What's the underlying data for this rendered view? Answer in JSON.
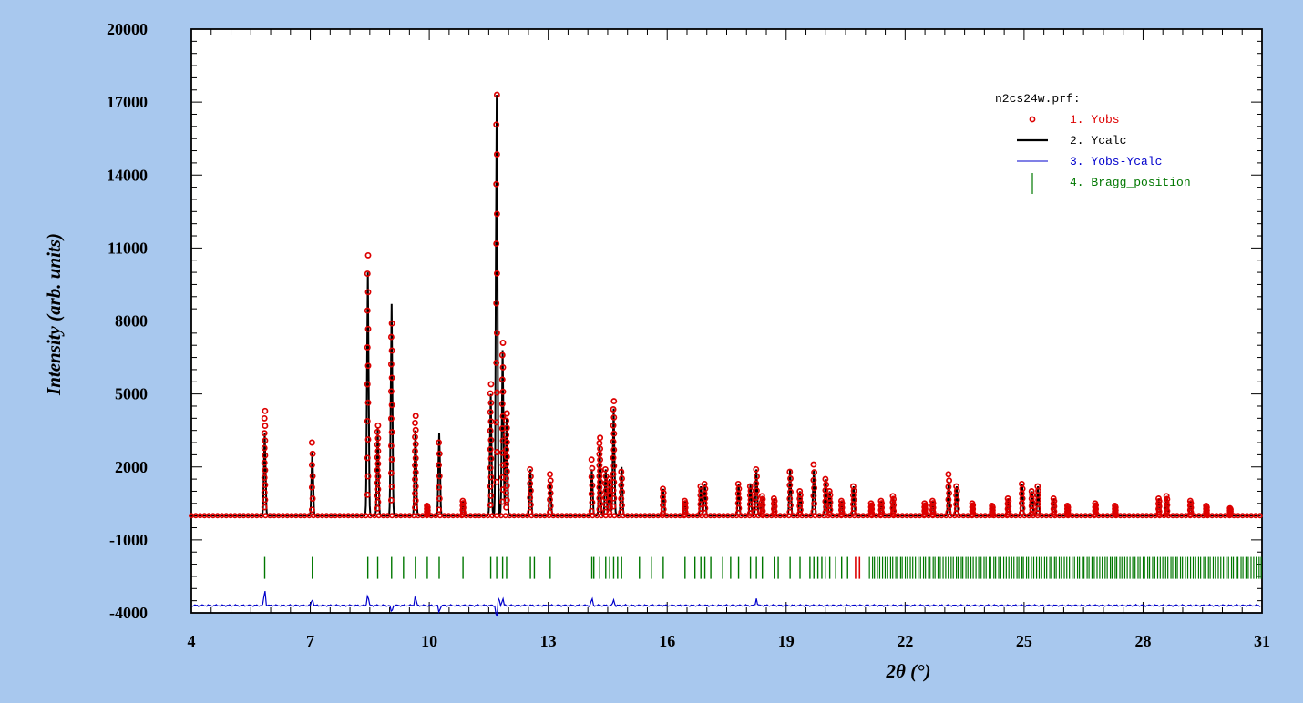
{
  "chart_data": {
    "type": "line",
    "file_label": "n2cs24w.prf:",
    "xlabel": "2θ (°)",
    "ylabel": "Intensity (arb. units)",
    "xlim": [
      4,
      31
    ],
    "ylim": [
      -4000,
      20000
    ],
    "x_tick_labels": [
      "4",
      "7",
      "10",
      "13",
      "16",
      "19",
      "22",
      "25",
      "28",
      "31"
    ],
    "y_tick_labels": [
      "20000",
      "17000",
      "14000",
      "11000",
      "8000",
      "5000",
      "2000",
      "-1000",
      "-4000"
    ],
    "baseline": 0,
    "colors": {
      "background": "#a8c8ee",
      "plot_area": "#ffffff",
      "yobs": "#dd0000",
      "ycalc": "#000000",
      "diff": "#0000cc",
      "bragg": "#007700",
      "bragg_highlight": "#dd0000"
    },
    "legend": [
      {
        "label": "1. Yobs",
        "marker": "circle",
        "color": "#dd0000"
      },
      {
        "label": "2. Ycalc",
        "marker": "line",
        "color": "#000000"
      },
      {
        "label": "3. Yobs-Ycalc",
        "marker": "thin-line",
        "color": "#0000cc"
      },
      {
        "label": "4. Bragg_position",
        "marker": "tick",
        "color": "#007700"
      }
    ],
    "series": [
      {
        "name": "Yobs",
        "peaks": [
          {
            "x": 5.85,
            "y": 4300
          },
          {
            "x": 7.05,
            "y": 3000
          },
          {
            "x": 8.45,
            "y": 10700
          },
          {
            "x": 8.7,
            "y": 3700
          },
          {
            "x": 9.05,
            "y": 7900
          },
          {
            "x": 9.65,
            "y": 4100
          },
          {
            "x": 9.95,
            "y": 400
          },
          {
            "x": 10.25,
            "y": 3000
          },
          {
            "x": 10.85,
            "y": 600
          },
          {
            "x": 11.55,
            "y": 5400
          },
          {
            "x": 11.7,
            "y": 17300
          },
          {
            "x": 11.85,
            "y": 7100
          },
          {
            "x": 11.95,
            "y": 4200
          },
          {
            "x": 12.55,
            "y": 1900
          },
          {
            "x": 13.05,
            "y": 1700
          },
          {
            "x": 14.1,
            "y": 2300
          },
          {
            "x": 14.3,
            "y": 3200
          },
          {
            "x": 14.45,
            "y": 1900
          },
          {
            "x": 14.55,
            "y": 1500
          },
          {
            "x": 14.65,
            "y": 4700
          },
          {
            "x": 14.85,
            "y": 1800
          },
          {
            "x": 15.9,
            "y": 1100
          },
          {
            "x": 16.45,
            "y": 600
          },
          {
            "x": 16.85,
            "y": 1200
          },
          {
            "x": 16.95,
            "y": 1300
          },
          {
            "x": 17.8,
            "y": 1300
          },
          {
            "x": 18.1,
            "y": 1200
          },
          {
            "x": 18.25,
            "y": 1900
          },
          {
            "x": 18.4,
            "y": 800
          },
          {
            "x": 18.7,
            "y": 700
          },
          {
            "x": 19.1,
            "y": 1800
          },
          {
            "x": 19.35,
            "y": 1000
          },
          {
            "x": 19.7,
            "y": 2100
          },
          {
            "x": 20.0,
            "y": 1500
          },
          {
            "x": 20.1,
            "y": 1000
          },
          {
            "x": 20.4,
            "y": 600
          },
          {
            "x": 20.7,
            "y": 1200
          },
          {
            "x": 21.15,
            "y": 500
          },
          {
            "x": 21.4,
            "y": 600
          },
          {
            "x": 21.7,
            "y": 800
          },
          {
            "x": 22.5,
            "y": 500
          },
          {
            "x": 22.7,
            "y": 600
          },
          {
            "x": 23.1,
            "y": 1700
          },
          {
            "x": 23.3,
            "y": 1200
          },
          {
            "x": 23.7,
            "y": 500
          },
          {
            "x": 24.2,
            "y": 400
          },
          {
            "x": 24.6,
            "y": 700
          },
          {
            "x": 24.95,
            "y": 1300
          },
          {
            "x": 25.2,
            "y": 1000
          },
          {
            "x": 25.35,
            "y": 1200
          },
          {
            "x": 25.75,
            "y": 700
          },
          {
            "x": 26.1,
            "y": 400
          },
          {
            "x": 26.8,
            "y": 500
          },
          {
            "x": 27.3,
            "y": 400
          },
          {
            "x": 28.4,
            "y": 700
          },
          {
            "x": 28.6,
            "y": 800
          },
          {
            "x": 29.2,
            "y": 600
          },
          {
            "x": 29.6,
            "y": 400
          },
          {
            "x": 30.2,
            "y": 300
          }
        ]
      },
      {
        "name": "Ycalc",
        "peaks": [
          {
            "x": 5.85,
            "y": 3400
          },
          {
            "x": 7.05,
            "y": 2600
          },
          {
            "x": 8.45,
            "y": 10000
          },
          {
            "x": 8.7,
            "y": 3600
          },
          {
            "x": 9.05,
            "y": 8700
          },
          {
            "x": 9.65,
            "y": 3500
          },
          {
            "x": 10.25,
            "y": 3400
          },
          {
            "x": 11.55,
            "y": 5000
          },
          {
            "x": 11.7,
            "y": 17300
          },
          {
            "x": 11.85,
            "y": 6800
          },
          {
            "x": 11.95,
            "y": 4000
          },
          {
            "x": 12.55,
            "y": 1900
          },
          {
            "x": 13.05,
            "y": 1400
          },
          {
            "x": 14.1,
            "y": 1900
          },
          {
            "x": 14.3,
            "y": 2900
          },
          {
            "x": 14.65,
            "y": 4400
          },
          {
            "x": 14.85,
            "y": 2000
          },
          {
            "x": 18.1,
            "y": 1300
          },
          {
            "x": 19.1,
            "y": 1900
          },
          {
            "x": 19.7,
            "y": 1900
          },
          {
            "x": 23.1,
            "y": 1400
          }
        ]
      },
      {
        "name": "Yobs-Ycalc",
        "offset": -3700,
        "features": [
          {
            "x": 5.85,
            "y": 700
          },
          {
            "x": 7.05,
            "y": 300
          },
          {
            "x": 8.45,
            "y": 500
          },
          {
            "x": 9.05,
            "y": -300
          },
          {
            "x": 9.65,
            "y": 400
          },
          {
            "x": 10.25,
            "y": -300
          },
          {
            "x": 11.7,
            "y": -600
          },
          {
            "x": 11.75,
            "y": 400
          },
          {
            "x": 11.85,
            "y": 300
          },
          {
            "x": 14.1,
            "y": 300
          },
          {
            "x": 14.65,
            "y": 250
          },
          {
            "x": 18.25,
            "y": 300
          }
        ]
      }
    ],
    "bragg_positions": {
      "regular": [
        5.85,
        7.05,
        8.45,
        8.7,
        9.05,
        9.35,
        9.65,
        9.95,
        10.25,
        10.85,
        11.55,
        11.7,
        11.85,
        11.95,
        12.55,
        12.65,
        13.05,
        14.1,
        14.15,
        14.3,
        14.45,
        14.55,
        14.65,
        14.75,
        14.85,
        15.3,
        15.6,
        15.9,
        16.45,
        16.7,
        16.85,
        16.95,
        17.1,
        17.4,
        17.6,
        17.8,
        18.1,
        18.25,
        18.4,
        18.7,
        18.8,
        19.1,
        19.35,
        19.6,
        19.7,
        19.8,
        19.9,
        20.0,
        20.1,
        20.25,
        20.4,
        20.55
      ],
      "highlight": [
        20.75,
        20.85
      ],
      "dense_range": [
        21.1,
        31.0
      ]
    }
  }
}
